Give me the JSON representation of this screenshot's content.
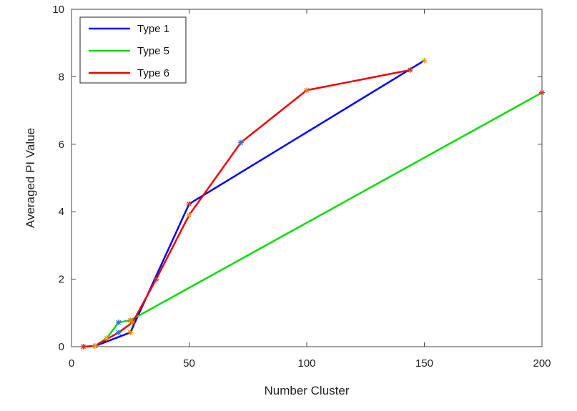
{
  "chart_data": {
    "type": "line",
    "title": "",
    "xlabel": "Number Cluster",
    "ylabel": "Averaged PI Value",
    "xlim": [
      0,
      200
    ],
    "ylim": [
      0,
      10
    ],
    "xticks": [
      0,
      50,
      100,
      150,
      200
    ],
    "yticks": [
      0,
      2,
      4,
      6,
      8,
      10
    ],
    "grid": false,
    "legend_position": "top-left",
    "series": [
      {
        "name": "Type 1",
        "color": "#0000ff",
        "x": [
          10,
          25,
          50,
          150
        ],
        "y": [
          0.02,
          0.42,
          4.23,
          8.48
        ]
      },
      {
        "name": "Type 5",
        "color": "#00dd00",
        "x": [
          5,
          10,
          15,
          20,
          25,
          200
        ],
        "y": [
          0,
          0.02,
          0.25,
          0.72,
          0.78,
          7.53
        ]
      },
      {
        "name": "Type 6",
        "color": "#ee0000",
        "x": [
          5,
          10,
          20,
          26,
          36,
          50,
          72,
          100,
          144
        ],
        "y": [
          0,
          0.02,
          0.42,
          0.72,
          2.0,
          3.9,
          6.05,
          7.6,
          8.2
        ]
      }
    ]
  }
}
